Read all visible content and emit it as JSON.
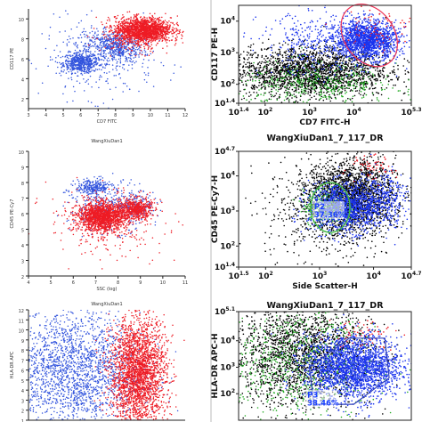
{
  "chart_data": [
    {
      "type": "scatter",
      "position": "left-top",
      "title": "",
      "xlabel": "CD7 FITC",
      "ylabel": "CD117 PE",
      "xlim": [
        3,
        12
      ],
      "ylim": [
        1,
        11
      ],
      "xticks": [
        "3",
        "4",
        "5",
        "6",
        "7",
        "8",
        "9",
        "10",
        "11",
        "12"
      ],
      "yticks": [
        "2",
        "4",
        "6",
        "8",
        "10"
      ],
      "series": [
        {
          "color": "#3355dd",
          "clusters": [
            {
              "cx": 6.0,
              "cy": 5.6,
              "sx": 0.5,
              "sy": 0.5,
              "n": 500
            },
            {
              "cx": 8.0,
              "cy": 7.2,
              "sx": 0.8,
              "sy": 0.8,
              "n": 500
            },
            {
              "cx": 7.0,
              "cy": 6.0,
              "sx": 1.6,
              "sy": 2.0,
              "n": 350
            }
          ]
        },
        {
          "color": "#ee1c25",
          "clusters": [
            {
              "cx": 9.6,
              "cy": 8.9,
              "sx": 0.8,
              "sy": 0.6,
              "n": 1500
            },
            {
              "cx": 9.2,
              "cy": 8.4,
              "sx": 1.0,
              "sy": 0.9,
              "n": 300
            }
          ]
        }
      ]
    },
    {
      "type": "scatter",
      "position": "left-middle",
      "title": "WangXiuDan1",
      "xlabel": "SSC (log)",
      "ylabel": "CD45 PE-Cy7",
      "xlim": [
        4,
        11
      ],
      "ylim": [
        2,
        10
      ],
      "xticks": [
        "4",
        "5",
        "6",
        "7",
        "8",
        "9",
        "10",
        "11"
      ],
      "yticks": [
        "2",
        "3",
        "4",
        "5",
        "6",
        "7",
        "8",
        "9",
        "10"
      ],
      "series": [
        {
          "color": "#3355dd",
          "clusters": [
            {
              "cx": 6.9,
              "cy": 7.7,
              "sx": 0.4,
              "sy": 0.25,
              "n": 250
            },
            {
              "cx": 7.6,
              "cy": 6.4,
              "sx": 0.9,
              "sy": 0.8,
              "n": 350
            },
            {
              "cx": 8.8,
              "cy": 6.5,
              "sx": 0.35,
              "sy": 0.35,
              "n": 120
            }
          ]
        },
        {
          "color": "#ee1c25",
          "clusters": [
            {
              "cx": 7.3,
              "cy": 5.8,
              "sx": 0.55,
              "sy": 0.45,
              "n": 1500
            },
            {
              "cx": 8.8,
              "cy": 6.3,
              "sx": 0.35,
              "sy": 0.35,
              "n": 500
            },
            {
              "cx": 7.5,
              "cy": 5.5,
              "sx": 1.3,
              "sy": 1.1,
              "n": 300
            }
          ]
        }
      ]
    },
    {
      "type": "scatter",
      "position": "left-bottom",
      "title": "WangXiuDan1",
      "xlabel": "",
      "ylabel": "HLA-DR APC",
      "xlim": [
        3,
        12
      ],
      "ylim": [
        1,
        12
      ],
      "xticks": [],
      "yticks": [
        "1",
        "2",
        "3",
        "4",
        "5",
        "6",
        "7",
        "8",
        "9",
        "10",
        "11",
        "12"
      ],
      "series": [
        {
          "color": "#3355dd",
          "clusters": [
            {
              "cx": 5.5,
              "cy": 6.0,
              "sx": 2.0,
              "sy": 3.0,
              "n": 2200
            }
          ]
        },
        {
          "color": "#ee1c25",
          "clusters": [
            {
              "cx": 9.3,
              "cy": 5.6,
              "sx": 0.8,
              "sy": 2.8,
              "n": 2600
            }
          ]
        }
      ]
    },
    {
      "type": "scatter",
      "position": "right-top",
      "title": "",
      "xlabel": "CD7 FITC-H",
      "ylabel": "CD117 PE-H",
      "xlim": [
        1.4,
        5.3
      ],
      "ylim": [
        1.4,
        4.5
      ],
      "x_scale": "log",
      "y_scale": "log",
      "xticks": [
        "10^1.4",
        "10^2",
        "10^3",
        "10^4",
        "10^5.3"
      ],
      "yticks": [
        "10^1.4",
        "10^2",
        "10^3",
        "10^4"
      ],
      "series": [
        {
          "color": "#000000",
          "clusters": [
            {
              "cx": 3.0,
              "cy": 2.4,
              "sx": 0.9,
              "sy": 0.4,
              "n": 2200
            }
          ]
        },
        {
          "color": "#22aa22",
          "clusters": [
            {
              "cx": 3.2,
              "cy": 2.0,
              "sx": 0.9,
              "sy": 0.35,
              "n": 450
            }
          ]
        },
        {
          "color": "#1a33ee",
          "clusters": [
            {
              "cx": 4.3,
              "cy": 3.4,
              "sx": 0.35,
              "sy": 0.3,
              "n": 1500
            },
            {
              "cx": 3.3,
              "cy": 3.3,
              "sx": 0.7,
              "sy": 0.5,
              "n": 400
            }
          ]
        },
        {
          "color": "#ee1c25",
          "clusters": [
            {
              "cx": 4.6,
              "cy": 3.8,
              "sx": 0.4,
              "sy": 0.4,
              "n": 80
            }
          ]
        }
      ],
      "gates": [
        {
          "color": "#ee3355",
          "label": ""
        }
      ]
    },
    {
      "type": "scatter",
      "position": "right-middle",
      "title": "WangXiuDan1_7_117_DR",
      "xlabel": "Side Scatter-H",
      "ylabel": "CD45 PE-Cy7-H",
      "xlim": [
        1.5,
        4.7
      ],
      "ylim": [
        1.4,
        4.7
      ],
      "x_scale": "log",
      "y_scale": "log",
      "xticks": [
        "10^1.5",
        "10^2",
        "10^3",
        "10^4",
        "10^4.7"
      ],
      "yticks": [
        "10^1.4",
        "10^2",
        "10^3",
        "10^4",
        "10^4.7"
      ],
      "series": [
        {
          "color": "#000000",
          "clusters": [
            {
              "cx": 3.6,
              "cy": 3.5,
              "sx": 0.4,
              "sy": 0.5,
              "n": 1700
            },
            {
              "cx": 3.2,
              "cy": 3.0,
              "sx": 0.6,
              "sy": 0.7,
              "n": 700
            }
          ]
        },
        {
          "color": "#22aa22",
          "clusters": [
            {
              "cx": 3.1,
              "cy": 3.1,
              "sx": 0.2,
              "sy": 0.25,
              "n": 300
            }
          ]
        },
        {
          "color": "#1a33ee",
          "clusters": [
            {
              "cx": 3.5,
              "cy": 3.1,
              "sx": 0.35,
              "sy": 0.35,
              "n": 1200
            },
            {
              "cx": 4.2,
              "cy": 3.4,
              "sx": 0.2,
              "sy": 0.4,
              "n": 300
            }
          ]
        },
        {
          "color": "#ee1c25",
          "clusters": [
            {
              "cx": 3.9,
              "cy": 4.2,
              "sx": 0.25,
              "sy": 0.2,
              "n": 60
            }
          ]
        }
      ],
      "gates": [
        {
          "color": "#44bb44",
          "label": "P2",
          "percent": "37.36%"
        }
      ]
    },
    {
      "type": "scatter",
      "position": "right-bottom",
      "title": "WangXiuDan1_7_117_DR",
      "xlabel": "",
      "ylabel": "HLA-DR APC-H",
      "xlim": [
        1.4,
        5.3
      ],
      "ylim": [
        1.0,
        5.1
      ],
      "x_scale": "log",
      "y_scale": "log",
      "xticks": [],
      "yticks": [
        "10^5.1",
        "10^4",
        "10^3",
        "10^2"
      ],
      "series": [
        {
          "color": "#000000",
          "clusters": [
            {
              "cx": 2.8,
              "cy": 3.5,
              "sx": 0.8,
              "sy": 1.0,
              "n": 2000
            }
          ]
        },
        {
          "color": "#22aa22",
          "clusters": [
            {
              "cx": 2.7,
              "cy": 3.2,
              "sx": 0.9,
              "sy": 1.1,
              "n": 800
            }
          ]
        },
        {
          "color": "#1a33ee",
          "clusters": [
            {
              "cx": 4.0,
              "cy": 3.0,
              "sx": 0.55,
              "sy": 0.6,
              "n": 2200
            }
          ]
        },
        {
          "color": "#ee1c25",
          "clusters": [
            {
              "cx": 4.2,
              "cy": 4.3,
              "sx": 0.4,
              "sy": 0.3,
              "n": 60
            }
          ]
        }
      ],
      "gates": [
        {
          "color": "#3344bb",
          "label": "P3",
          "percent": "38.46%"
        }
      ]
    }
  ]
}
